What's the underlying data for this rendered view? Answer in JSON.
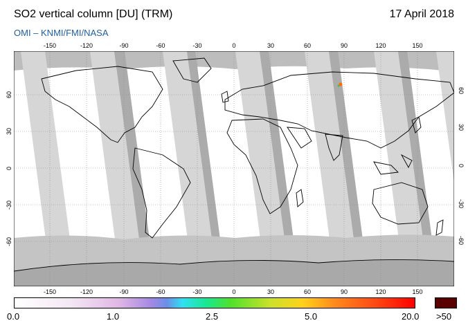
{
  "header": {
    "title": "SO2 vertical column [DU] (TRM)",
    "date": "17 April 2018",
    "credit": "OMI  –  KNMI/FMI/NASA"
  },
  "map": {
    "lon_ticks": [
      "-150",
      "-120",
      "-90",
      "-60",
      "-30",
      "0",
      "30",
      "60",
      "90",
      "120",
      "150"
    ],
    "lat_ticks": [
      "60",
      "30",
      "0",
      "-30",
      "-60"
    ],
    "colors": {
      "ocean": "#ffffff",
      "swath_light": "#d3d3d3",
      "swath_dark": "#a9a9a9",
      "polar": "#a9a9a9",
      "coast": "#000000",
      "hotspot": "#ff6a00"
    }
  },
  "colorbar": {
    "labels": [
      "0.0",
      "1.0",
      "2.5",
      "5.0",
      "20.0",
      ">50"
    ],
    "max_color": "#5a0000"
  }
}
